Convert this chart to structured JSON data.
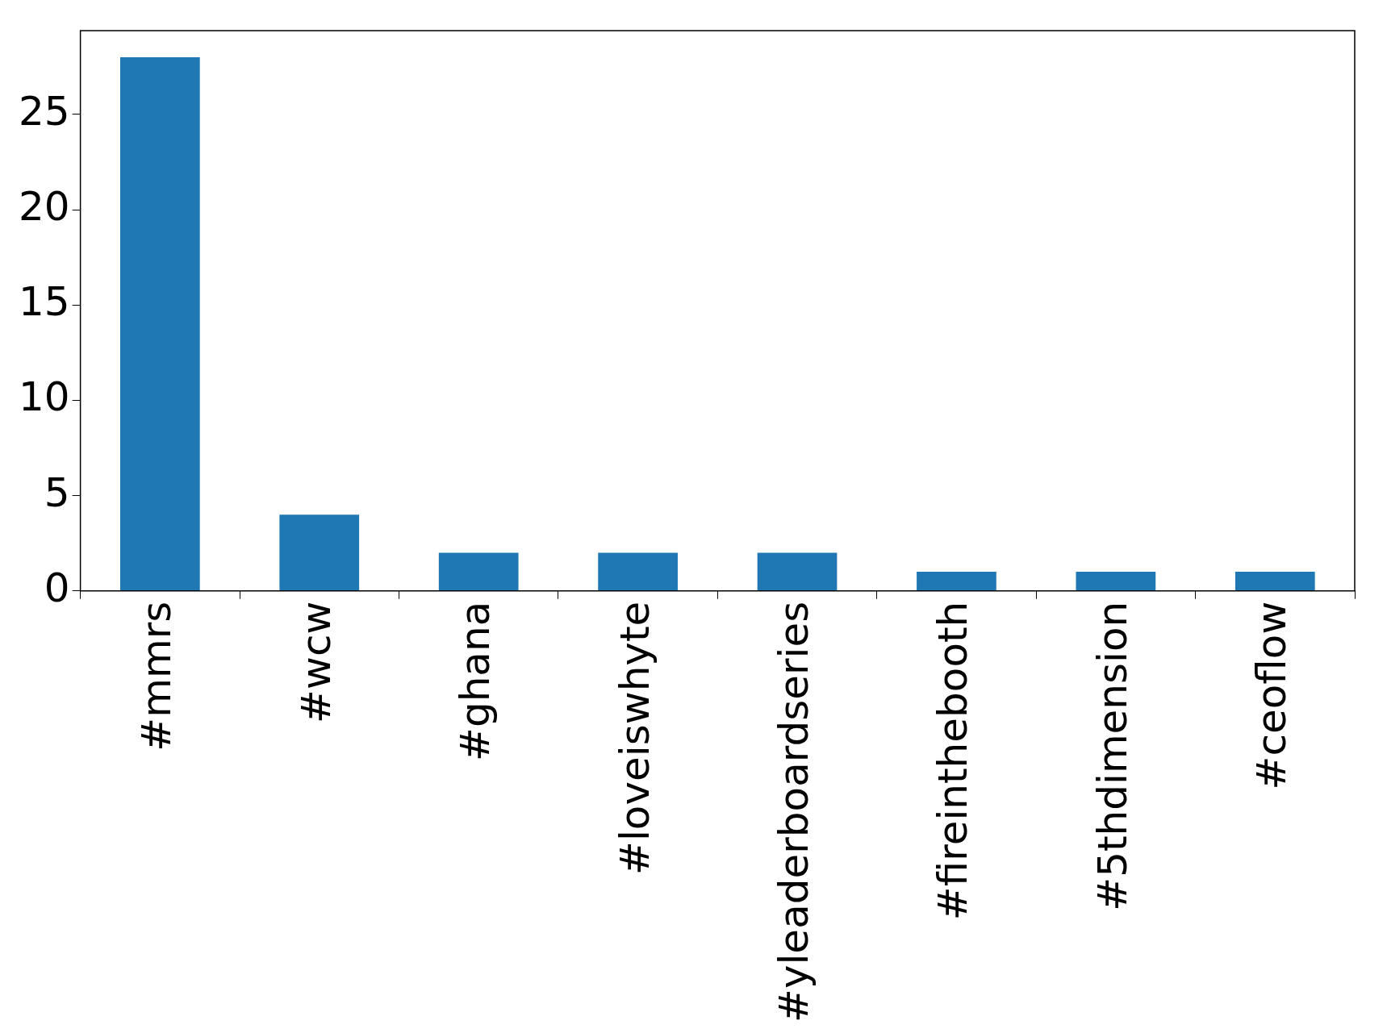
{
  "chart_data": {
    "type": "bar",
    "categories": [
      "#mmrs",
      "#wcw",
      "#ghana",
      "#loveiswhyte",
      "#yleaderboardseries",
      "#fireinthebooth",
      "#5thdimension",
      "#ceoflow"
    ],
    "values": [
      28,
      4,
      2,
      2,
      2,
      1,
      1,
      1
    ],
    "color": "#1f77b4",
    "ylim": [
      0,
      29.4
    ],
    "yticks": [
      0,
      5,
      10,
      15,
      20,
      25
    ],
    "grid": false,
    "legend": false
  }
}
